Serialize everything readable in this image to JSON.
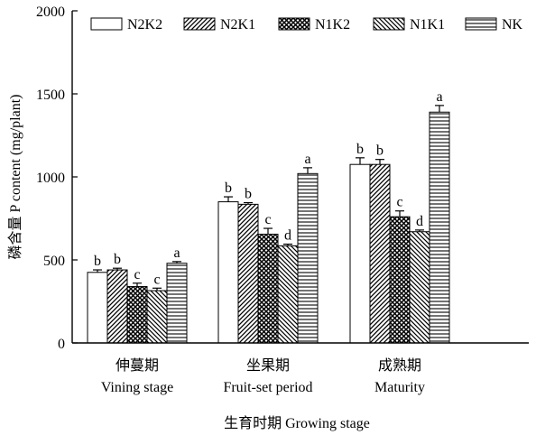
{
  "chart_data": {
    "type": "bar",
    "title": "",
    "xlabel": "生育时期 Growing stage",
    "ylabel": "磷含量 P content (mg/plant)",
    "ylim": [
      0,
      2000
    ],
    "yticks": [
      0,
      500,
      1000,
      1500,
      2000
    ],
    "grid": false,
    "legend_position": "top",
    "categories": [
      {
        "cn": "伸蔓期",
        "en": "Vining stage"
      },
      {
        "cn": "坐果期",
        "en": "Fruit-set period"
      },
      {
        "cn": "成熟期",
        "en": "Maturity"
      }
    ],
    "series": [
      {
        "name": "N2K2",
        "pattern": "solid-white",
        "values": [
          425,
          850,
          1075
        ],
        "errors": [
          15,
          30,
          40
        ],
        "labels": [
          "b",
          "b",
          "b"
        ]
      },
      {
        "name": "N2K1",
        "pattern": "diagonal-up",
        "values": [
          440,
          835,
          1075
        ],
        "errors": [
          10,
          10,
          30
        ],
        "labels": [
          "b",
          "b",
          "b"
        ]
      },
      {
        "name": "N1K2",
        "pattern": "crosshatch",
        "values": [
          340,
          655,
          760
        ],
        "errors": [
          20,
          35,
          35
        ],
        "labels": [
          "c",
          "c",
          "c"
        ]
      },
      {
        "name": "N1K1",
        "pattern": "diagonal-down",
        "values": [
          315,
          585,
          670
        ],
        "errors": [
          15,
          10,
          10
        ],
        "labels": [
          "c",
          "d",
          "d"
        ]
      },
      {
        "name": "NK",
        "pattern": "horizontal-lines",
        "values": [
          480,
          1020,
          1390
        ],
        "errors": [
          10,
          35,
          40
        ],
        "labels": [
          "a",
          "a",
          "a"
        ]
      }
    ]
  }
}
